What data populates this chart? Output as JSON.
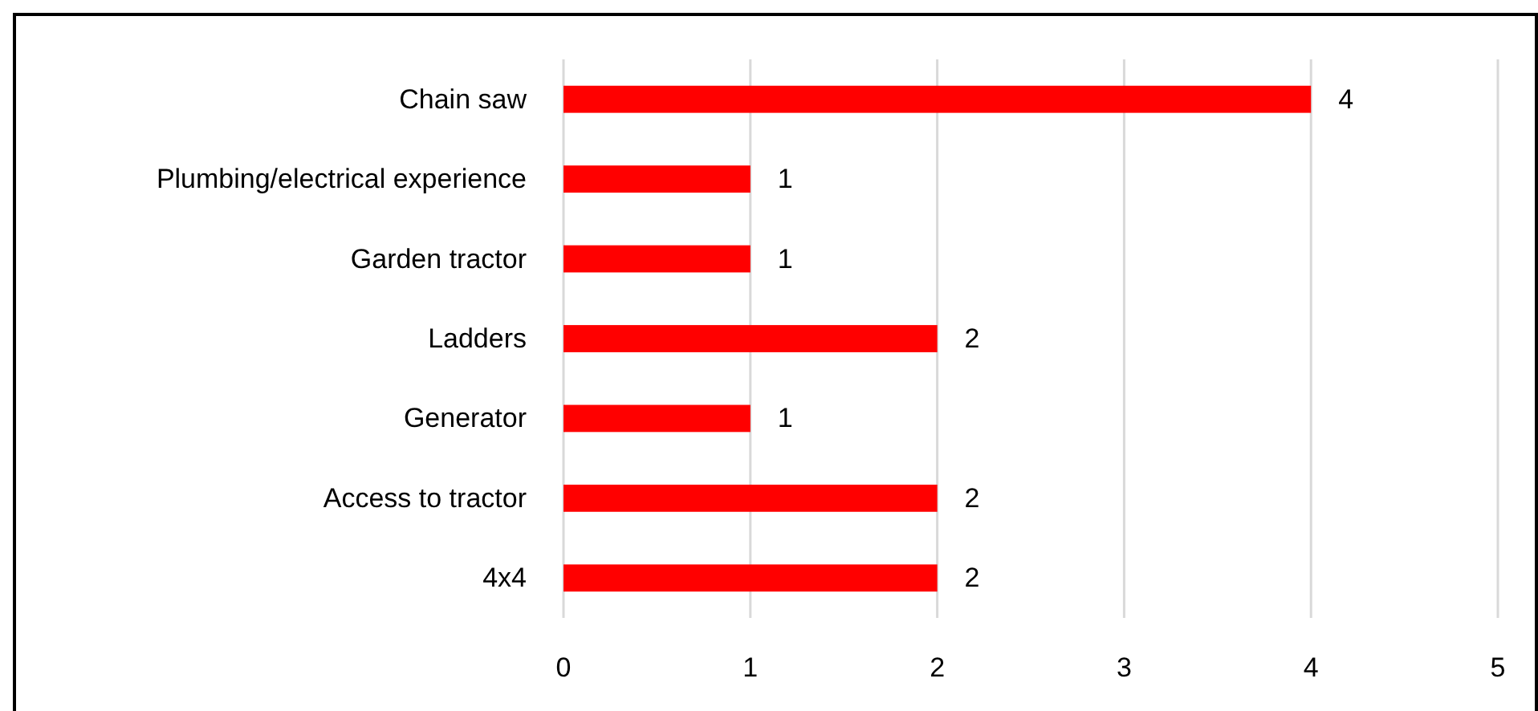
{
  "chart_data": {
    "type": "bar",
    "orientation": "horizontal",
    "categories": [
      "Chain saw",
      "Plumbing/electrical experience",
      "Garden tractor",
      "Ladders",
      "Generator",
      "Access to tractor",
      "4x4"
    ],
    "values": [
      4,
      1,
      1,
      2,
      1,
      2,
      2
    ],
    "color": "#ff0000",
    "xlim": [
      0,
      5
    ],
    "xticks": [
      0,
      1,
      2,
      3,
      4,
      5
    ],
    "grid": "x",
    "data_labels": true
  }
}
